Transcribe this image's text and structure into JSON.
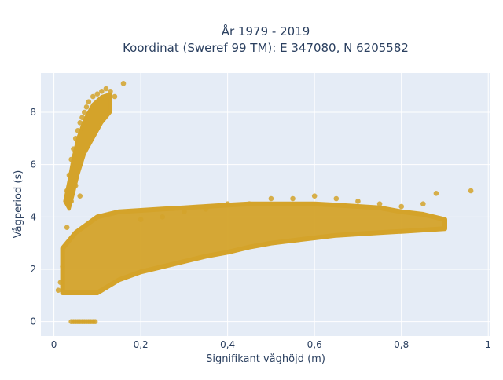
{
  "chart_data": {
    "type": "scatter",
    "title_line1": "År 1979 - 2019",
    "title_line2": "Koordinat (Sweref 99 TM): E 347080, N 6205582",
    "xlabel": "Signifikant våghöjd (m)",
    "ylabel": "Vågperiod (s)",
    "xlim": [
      -0.03,
      1.005
    ],
    "ylim": [
      -0.55,
      9.5
    ],
    "x_ticks": [
      0,
      0.2,
      0.4,
      0.6,
      0.8,
      1
    ],
    "x_tick_labels": [
      "0",
      "0,2",
      "0,4",
      "0,6",
      "0,8",
      "1"
    ],
    "y_ticks": [
      0,
      2,
      4,
      6,
      8
    ],
    "y_tick_labels": [
      "0",
      "2",
      "4",
      "6",
      "8"
    ],
    "grid": true,
    "colors": {
      "marker": "#d4a32a",
      "plot_bg": "#e5ecf6",
      "grid": "#ffffff"
    },
    "series": [
      {
        "x": [
          0.04,
          0.045,
          0.05,
          0.055,
          0.06,
          0.065,
          0.07,
          0.075,
          0.08,
          0.085,
          0.09,
          0.095,
          0.01,
          0.015,
          0.02,
          0.03,
          0.04,
          0.05,
          0.06,
          0.03,
          0.035,
          0.04,
          0.045,
          0.05,
          0.055,
          0.06,
          0.065,
          0.07,
          0.075,
          0.08,
          0.09,
          0.1,
          0.11,
          0.12,
          0.13,
          0.14,
          0.16,
          0.2,
          0.25,
          0.3,
          0.35,
          0.4,
          0.45,
          0.5,
          0.55,
          0.6,
          0.65,
          0.7,
          0.75,
          0.8,
          0.85,
          0.88,
          0.96
        ],
        "y": [
          0,
          0,
          0,
          0,
          0,
          0,
          0,
          0,
          0,
          0,
          0,
          0,
          1.2,
          1.5,
          2.1,
          3.6,
          4.6,
          5.2,
          4.8,
          5.0,
          5.6,
          6.2,
          6.6,
          7.0,
          7.3,
          7.6,
          7.8,
          8.0,
          8.2,
          8.4,
          8.6,
          8.7,
          8.8,
          8.9,
          8.8,
          8.6,
          9.1,
          3.9,
          4.0,
          4.2,
          4.3,
          4.5,
          4.5,
          4.7,
          4.7,
          4.8,
          4.7,
          4.6,
          4.5,
          4.4,
          4.5,
          4.9,
          5.0
        ]
      }
    ],
    "dense_band": {
      "x": [
        0.02,
        0.05,
        0.1,
        0.15,
        0.2,
        0.25,
        0.3,
        0.35,
        0.4,
        0.45,
        0.5,
        0.55,
        0.6,
        0.65,
        0.7,
        0.75,
        0.8,
        0.85,
        0.9
      ],
      "y_lower": [
        1.1,
        1.1,
        1.1,
        1.6,
        1.9,
        2.1,
        2.3,
        2.5,
        2.65,
        2.85,
        3.0,
        3.1,
        3.2,
        3.3,
        3.35,
        3.4,
        3.45,
        3.5,
        3.55
      ],
      "y_upper": [
        2.8,
        3.4,
        4.0,
        4.2,
        4.25,
        4.3,
        4.35,
        4.4,
        4.45,
        4.5,
        4.5,
        4.5,
        4.5,
        4.45,
        4.4,
        4.35,
        4.2,
        4.1,
        3.9
      ]
    }
  }
}
